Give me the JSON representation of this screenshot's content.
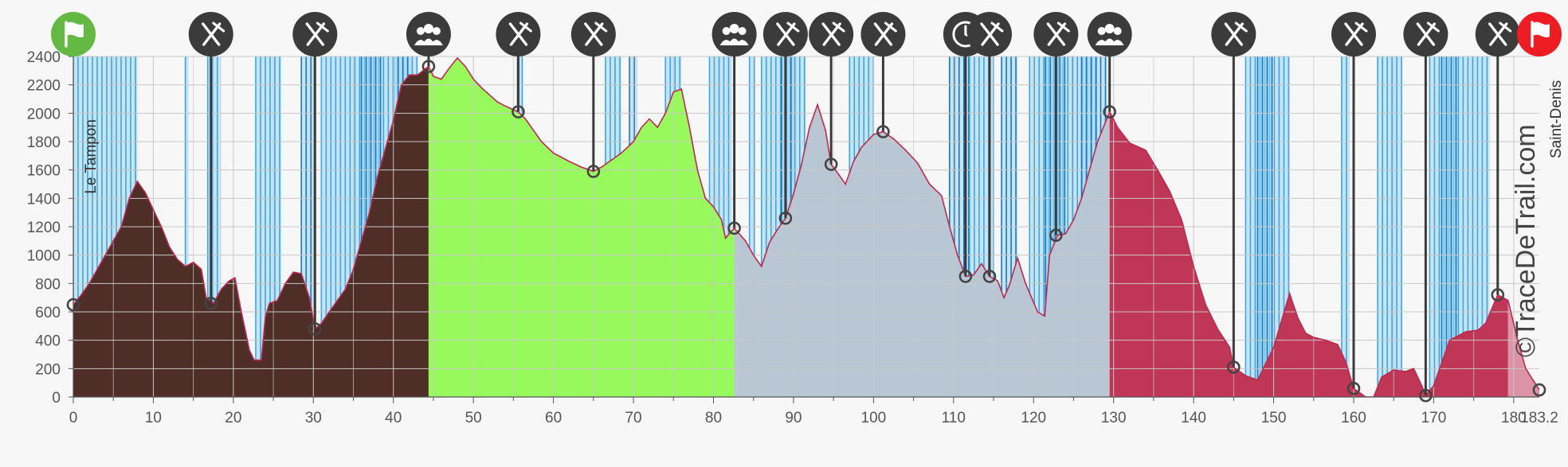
{
  "chart_data": {
    "type": "area",
    "title": "",
    "xlabel": "",
    "ylabel": "",
    "xlim": [
      0,
      183.2
    ],
    "ylim": [
      0,
      2400
    ],
    "x_ticks": [
      0,
      10,
      20,
      30,
      40,
      50,
      60,
      70,
      80,
      90,
      100,
      110,
      120,
      130,
      140,
      150,
      160,
      170,
      180,
      183.2
    ],
    "x_tick_labels": [
      "0",
      "10",
      "20",
      "30",
      "40",
      "50",
      "60",
      "70",
      "80",
      "90",
      "100",
      "110",
      "120",
      "130",
      "140",
      "150",
      "160",
      "170",
      "180",
      "183.2"
    ],
    "y_ticks": [
      0,
      200,
      400,
      600,
      800,
      1000,
      1200,
      1400,
      1600,
      1800,
      2000,
      2200,
      2400
    ],
    "start_label": "Le Tampon",
    "end_label": "Saint-Denis",
    "watermark": "©TraceDeTrail.com",
    "colors": {
      "background": "#f7f7f7",
      "grid": "#c8c8c8",
      "outline": "#c0284f",
      "slope_dark": "#1877b8",
      "slope_mid": "#39a7e0",
      "slope_light": "#9fd6f3",
      "marker": "#3b3b3b",
      "start_flag": "#63b944",
      "end_flag": "#ee1d24"
    },
    "segments": [
      {
        "from": 0,
        "to": 44.4,
        "color": "#4e2e27"
      },
      {
        "from": 44.4,
        "to": 82.6,
        "color": "#98f95d"
      },
      {
        "from": 82.6,
        "to": 129.5,
        "color": "#b8c7d3"
      },
      {
        "from": 129.5,
        "to": 179.3,
        "color": "#c03656"
      },
      {
        "from": 179.3,
        "to": 183.2,
        "color": "#dc93a8"
      }
    ],
    "profile": [
      [
        0,
        650
      ],
      [
        1,
        720
      ],
      [
        2,
        800
      ],
      [
        3,
        900
      ],
      [
        4,
        1000
      ],
      [
        5,
        1100
      ],
      [
        6,
        1200
      ],
      [
        7,
        1400
      ],
      [
        8,
        1520
      ],
      [
        9,
        1440
      ],
      [
        10,
        1320
      ],
      [
        11,
        1200
      ],
      [
        12,
        1060
      ],
      [
        13,
        970
      ],
      [
        14,
        920
      ],
      [
        15,
        950
      ],
      [
        16,
        900
      ],
      [
        16.6,
        700
      ],
      [
        17.5,
        660
      ],
      [
        18.5,
        760
      ],
      [
        19.5,
        820
      ],
      [
        20.2,
        840
      ],
      [
        21,
        600
      ],
      [
        22,
        330
      ],
      [
        22.6,
        260
      ],
      [
        23.5,
        260
      ],
      [
        24,
        560
      ],
      [
        24.5,
        660
      ],
      [
        25.5,
        680
      ],
      [
        26.5,
        800
      ],
      [
        27.5,
        880
      ],
      [
        28.5,
        870
      ],
      [
        29.5,
        700
      ],
      [
        30.2,
        480
      ],
      [
        31,
        520
      ],
      [
        32,
        600
      ],
      [
        33,
        680
      ],
      [
        34,
        760
      ],
      [
        35,
        900
      ],
      [
        36,
        1100
      ],
      [
        37,
        1300
      ],
      [
        38,
        1550
      ],
      [
        39,
        1750
      ],
      [
        40,
        1950
      ],
      [
        41,
        2200
      ],
      [
        42,
        2270
      ],
      [
        43,
        2270
      ],
      [
        44.4,
        2330
      ],
      [
        45,
        2260
      ],
      [
        46,
        2240
      ],
      [
        47,
        2320
      ],
      [
        48,
        2390
      ],
      [
        49,
        2330
      ],
      [
        50,
        2240
      ],
      [
        51,
        2180
      ],
      [
        52,
        2130
      ],
      [
        53,
        2080
      ],
      [
        54,
        2050
      ],
      [
        55.6,
        2010
      ],
      [
        56.5,
        1960
      ],
      [
        57.5,
        1880
      ],
      [
        58.5,
        1800
      ],
      [
        60,
        1720
      ],
      [
        62,
        1660
      ],
      [
        63.5,
        1620
      ],
      [
        65,
        1590
      ],
      [
        66,
        1620
      ],
      [
        67,
        1660
      ],
      [
        68.5,
        1720
      ],
      [
        70,
        1800
      ],
      [
        71,
        1900
      ],
      [
        72,
        1960
      ],
      [
        73,
        1900
      ],
      [
        74,
        2000
      ],
      [
        75,
        2150
      ],
      [
        76,
        2170
      ],
      [
        77,
        1900
      ],
      [
        78,
        1600
      ],
      [
        79,
        1400
      ],
      [
        80,
        1340
      ],
      [
        81,
        1250
      ],
      [
        81.5,
        1120
      ],
      [
        82.6,
        1190
      ],
      [
        84,
        1100
      ],
      [
        85,
        1000
      ],
      [
        86,
        920
      ],
      [
        87,
        1090
      ],
      [
        88,
        1180
      ],
      [
        89,
        1260
      ],
      [
        90,
        1430
      ],
      [
        91,
        1640
      ],
      [
        92,
        1900
      ],
      [
        93,
        2060
      ],
      [
        94,
        1880
      ],
      [
        94.7,
        1640
      ],
      [
        95.5,
        1580
      ],
      [
        96.5,
        1500
      ],
      [
        97.5,
        1660
      ],
      [
        98.5,
        1760
      ],
      [
        100,
        1850
      ],
      [
        101.2,
        1870
      ],
      [
        102.5,
        1820
      ],
      [
        104,
        1740
      ],
      [
        105.5,
        1650
      ],
      [
        107,
        1500
      ],
      [
        108.5,
        1420
      ],
      [
        109.5,
        1200
      ],
      [
        110.5,
        1000
      ],
      [
        111.5,
        850
      ],
      [
        112.5,
        860
      ],
      [
        113.5,
        940
      ],
      [
        114.5,
        850
      ],
      [
        115.5,
        820
      ],
      [
        116.3,
        700
      ],
      [
        117,
        790
      ],
      [
        118,
        980
      ],
      [
        119,
        800
      ],
      [
        120.5,
        600
      ],
      [
        121.4,
        570
      ],
      [
        122,
        1000
      ],
      [
        123,
        1140
      ],
      [
        124,
        1150
      ],
      [
        125,
        1250
      ],
      [
        126,
        1400
      ],
      [
        127,
        1600
      ],
      [
        128,
        1800
      ],
      [
        129.5,
        2010
      ],
      [
        130.5,
        1900
      ],
      [
        132,
        1790
      ],
      [
        134,
        1740
      ],
      [
        135.5,
        1600
      ],
      [
        137,
        1450
      ],
      [
        138.5,
        1250
      ],
      [
        140,
        920
      ],
      [
        141.5,
        650
      ],
      [
        143,
        480
      ],
      [
        144.5,
        350
      ],
      [
        145,
        210
      ],
      [
        146.5,
        150
      ],
      [
        148,
        120
      ],
      [
        150,
        350
      ],
      [
        152,
        730
      ],
      [
        153,
        560
      ],
      [
        154,
        450
      ],
      [
        155,
        420
      ],
      [
        156.5,
        400
      ],
      [
        158,
        370
      ],
      [
        159,
        250
      ],
      [
        160,
        60
      ],
      [
        161.5,
        0
      ],
      [
        162.5,
        0
      ],
      [
        163.5,
        140
      ],
      [
        165,
        190
      ],
      [
        166.5,
        180
      ],
      [
        167.5,
        200
      ],
      [
        168.5,
        80
      ],
      [
        169,
        10
      ],
      [
        170,
        80
      ],
      [
        171,
        240
      ],
      [
        172,
        400
      ],
      [
        174,
        460
      ],
      [
        175.5,
        470
      ],
      [
        176.5,
        520
      ],
      [
        178,
        720
      ],
      [
        179.3,
        680
      ],
      [
        180.5,
        400
      ],
      [
        181.5,
        200
      ],
      [
        183.2,
        50
      ]
    ],
    "waypoints": [
      {
        "km": 0,
        "alt": 650,
        "icon": "start-flag-icon"
      },
      {
        "km": 17.2,
        "alt": 660,
        "icon": "refreshment-icon"
      },
      {
        "km": 30.2,
        "alt": 480,
        "icon": "refreshment-icon"
      },
      {
        "km": 44.4,
        "alt": 2330,
        "icon": "crowd-icon"
      },
      {
        "km": 55.6,
        "alt": 2010,
        "icon": "refreshment-icon"
      },
      {
        "km": 65,
        "alt": 1590,
        "icon": "refreshment-icon"
      },
      {
        "km": 82.6,
        "alt": 1190,
        "icon": "crowd-icon"
      },
      {
        "km": 89,
        "alt": 1260,
        "icon": "refreshment-icon"
      },
      {
        "km": 94.7,
        "alt": 1640,
        "icon": "refreshment-icon"
      },
      {
        "km": 101.2,
        "alt": 1870,
        "icon": "refreshment-icon"
      },
      {
        "km": 111.5,
        "alt": 850,
        "icon": "time-barrier-icon"
      },
      {
        "km": 114.5,
        "alt": 850,
        "icon": "refreshment-icon"
      },
      {
        "km": 122.8,
        "alt": 1140,
        "icon": "refreshment-icon"
      },
      {
        "km": 129.5,
        "alt": 2010,
        "icon": "crowd-icon"
      },
      {
        "km": 145,
        "alt": 210,
        "icon": "refreshment-icon"
      },
      {
        "km": 160,
        "alt": 60,
        "icon": "refreshment-icon"
      },
      {
        "km": 169,
        "alt": 10,
        "icon": "refreshment-icon"
      },
      {
        "km": 178,
        "alt": 720,
        "icon": "refreshment-icon"
      },
      {
        "km": 183.2,
        "alt": 50,
        "icon": "finish-flag-icon"
      }
    ],
    "slope_bands": [
      {
        "from": 0,
        "to": 8,
        "shade": "mid"
      },
      {
        "from": 14,
        "to": 14.4,
        "shade": "mid"
      },
      {
        "from": 16.8,
        "to": 18.5,
        "shade": "mid"
      },
      {
        "from": 22.8,
        "to": 26,
        "shade": "mid"
      },
      {
        "from": 28.5,
        "to": 30,
        "shade": "dark"
      },
      {
        "from": 31,
        "to": 43,
        "shade": "mid"
      },
      {
        "from": 36,
        "to": 38.5,
        "shade": "dark"
      },
      {
        "from": 40,
        "to": 42,
        "shade": "dark"
      },
      {
        "from": 55.5,
        "to": 56.2,
        "shade": "mid"
      },
      {
        "from": 66.5,
        "to": 68.5,
        "shade": "mid"
      },
      {
        "from": 69.5,
        "to": 70.5,
        "shade": "dark"
      },
      {
        "from": 74,
        "to": 76,
        "shade": "mid"
      },
      {
        "from": 79.5,
        "to": 82.3,
        "shade": "mid"
      },
      {
        "from": 84.5,
        "to": 85.2,
        "shade": "mid"
      },
      {
        "from": 86,
        "to": 91.5,
        "shade": "mid"
      },
      {
        "from": 88.5,
        "to": 90,
        "shade": "dark"
      },
      {
        "from": 97,
        "to": 100,
        "shade": "mid"
      },
      {
        "from": 109.5,
        "to": 112,
        "shade": "dark"
      },
      {
        "from": 112,
        "to": 115,
        "shade": "mid"
      },
      {
        "from": 116,
        "to": 118,
        "shade": "dark"
      },
      {
        "from": 119.5,
        "to": 128,
        "shade": "mid"
      },
      {
        "from": 121.5,
        "to": 124,
        "shade": "dark"
      },
      {
        "from": 126,
        "to": 129.2,
        "shade": "dark"
      },
      {
        "from": 146.5,
        "to": 152,
        "shade": "mid"
      },
      {
        "from": 148,
        "to": 150,
        "shade": "dark"
      },
      {
        "from": 158.5,
        "to": 159.5,
        "shade": "mid"
      },
      {
        "from": 163,
        "to": 166,
        "shade": "mid"
      },
      {
        "from": 169.5,
        "to": 177,
        "shade": "mid"
      },
      {
        "from": 171,
        "to": 173,
        "shade": "dark"
      }
    ]
  }
}
